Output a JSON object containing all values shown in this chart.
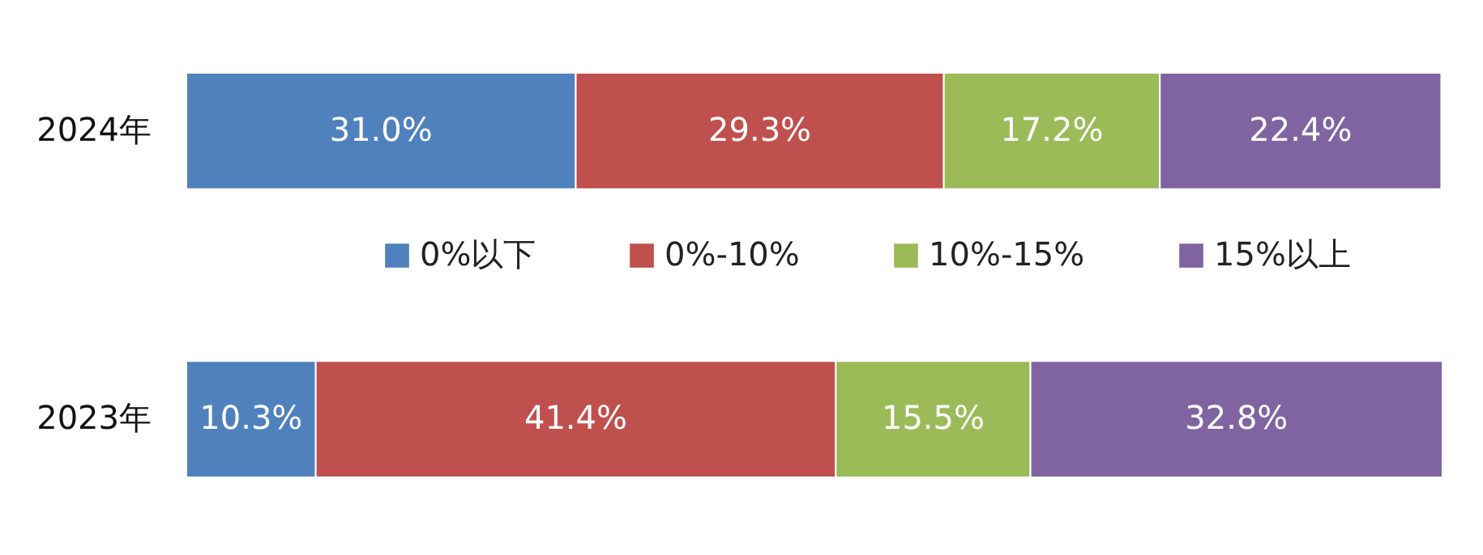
{
  "chart_data": {
    "type": "bar",
    "orientation": "horizontal",
    "stacked": true,
    "categories": [
      "2024年",
      "2023年"
    ],
    "series": [
      {
        "name": "0%以下",
        "color": "#4f81bd",
        "values": [
          31.0,
          10.3
        ],
        "value_labels": [
          "31.0%",
          "10.3%"
        ]
      },
      {
        "name": "0%-10%",
        "color": "#c0504d",
        "values": [
          29.3,
          41.4
        ],
        "value_labels": [
          "29.3%",
          "41.4%"
        ]
      },
      {
        "name": "10%-15%",
        "color": "#9bbb59",
        "values": [
          17.2,
          15.5
        ],
        "value_labels": [
          "17.2%",
          "15.5%"
        ]
      },
      {
        "name": "15%以上",
        "color": "#8064a2",
        "values": [
          22.4,
          32.8
        ],
        "value_labels": [
          "22.4%",
          "32.8%"
        ]
      }
    ],
    "legend": "center",
    "tick_labels": "y"
  }
}
